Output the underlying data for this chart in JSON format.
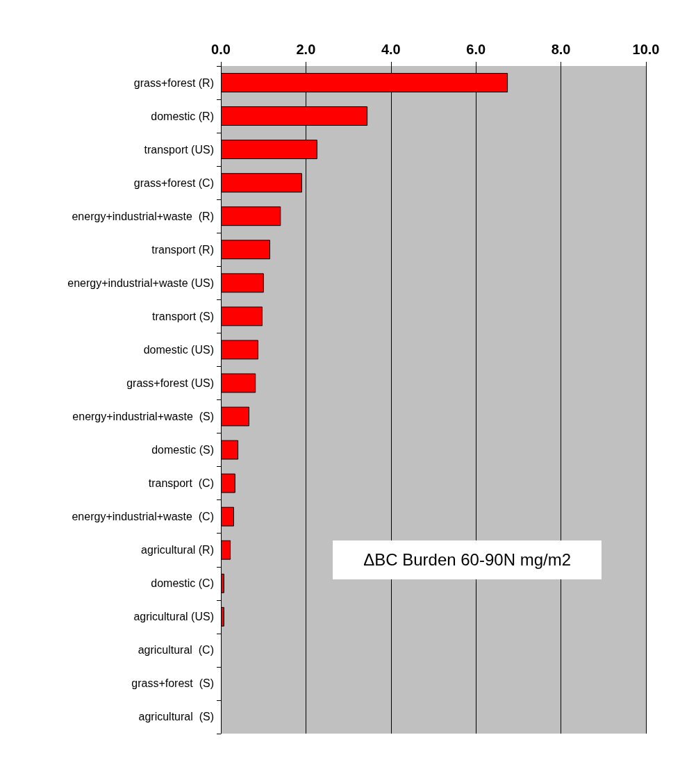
{
  "chart_data": {
    "type": "bar",
    "orientation": "horizontal",
    "categories": [
      "grass+forest (R)",
      "domestic (R)",
      "transport (US)",
      "grass+forest (C)",
      "energy+industrial+waste  (R)",
      "transport (R)",
      "energy+industrial+waste (US)",
      "transport (S)",
      "domestic (US)",
      "grass+forest (US)",
      "energy+industrial+waste  (S)",
      "domestic (S)",
      "transport  (C)",
      "energy+industrial+waste  (C)",
      "agricultural (R)",
      "domestic (C)",
      "agricultural (US)",
      "agricultural  (C)",
      "grass+forest  (S)",
      "agricultural  (S)"
    ],
    "values": [
      6.75,
      3.45,
      2.27,
      1.91,
      1.41,
      1.16,
      1.01,
      0.98,
      0.88,
      0.82,
      0.67,
      0.41,
      0.34,
      0.31,
      0.23,
      0.08,
      0.08,
      0,
      0,
      0
    ],
    "color": "#ff0000",
    "xlim": [
      0,
      10
    ],
    "xticks": [
      {
        "value": 0,
        "label": "0.0"
      },
      {
        "value": 2,
        "label": "2.0"
      },
      {
        "value": 4,
        "label": "4.0"
      },
      {
        "value": 6,
        "label": "6.0"
      },
      {
        "value": 8,
        "label": "8.0"
      },
      {
        "value": 10,
        "label": "10.0"
      }
    ],
    "grid": "x",
    "annotations": [
      "ΔBC Burden 60-90N mg/m2"
    ]
  }
}
